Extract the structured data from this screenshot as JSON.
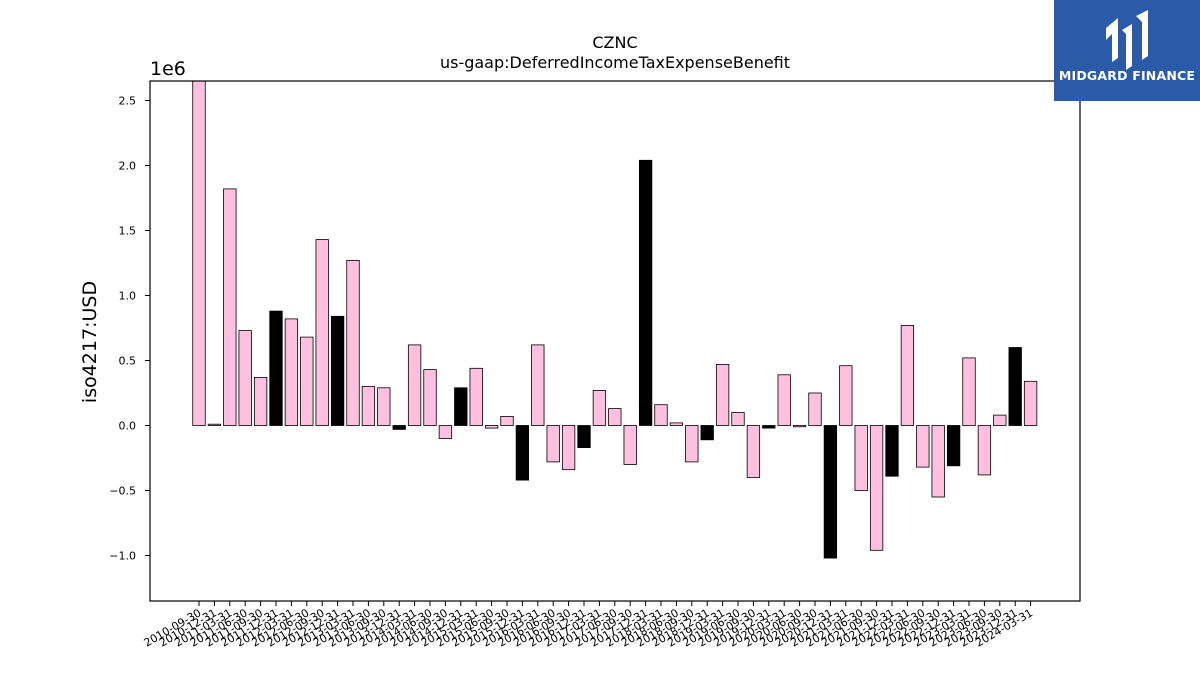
{
  "chart_data": {
    "type": "bar",
    "title": "CZNC",
    "subtitle": "us-gaap:DeferredIncomeTaxExpenseBenefit",
    "ylabel": "iso4217:USD",
    "xlabel": "",
    "offset_label": "1e6",
    "ylim": [
      -1.35,
      2.65
    ],
    "yticks": [
      -1.0,
      -0.5,
      0.0,
      0.5,
      1.0,
      1.5,
      2.0,
      2.5
    ],
    "ytick_labels": [
      "−1.0",
      "−0.5",
      "0.0",
      "0.5",
      "1.0",
      "1.5",
      "2.0",
      "2.5"
    ],
    "grid": false,
    "colors": {
      "quarterly": "#ffc0e0",
      "annual": "#000000",
      "edge": "#000000"
    },
    "categories": [
      "2010-09-30",
      "2010-12-31",
      "2011-03-31",
      "2011-06-30",
      "2011-09-30",
      "2011-12-31",
      "2012-03-31",
      "2012-06-30",
      "2012-09-30",
      "2012-12-31",
      "2013-03-31",
      "2013-06-30",
      "2013-09-30",
      "2013-12-31",
      "2014-03-31",
      "2014-06-30",
      "2014-09-30",
      "2014-12-31",
      "2015-03-31",
      "2015-06-30",
      "2015-09-30",
      "2015-12-31",
      "2016-03-31",
      "2016-06-30",
      "2016-09-30",
      "2016-12-31",
      "2017-03-31",
      "2017-06-30",
      "2017-09-30",
      "2017-12-31",
      "2018-03-31",
      "2018-06-30",
      "2018-09-30",
      "2018-12-31",
      "2019-03-31",
      "2019-06-30",
      "2019-09-30",
      "2019-12-31",
      "2020-03-31",
      "2020-06-30",
      "2020-09-30",
      "2020-12-31",
      "2021-03-31",
      "2021-06-30",
      "2021-09-30",
      "2021-12-31",
      "2022-03-31",
      "2022-06-30",
      "2022-09-30",
      "2022-12-31",
      "2023-03-31",
      "2023-06-30",
      "2023-09-30",
      "2023-12-31",
      "2024-03-31"
    ],
    "values": [
      2.65,
      0.01,
      1.82,
      0.73,
      0.37,
      0.88,
      0.82,
      0.68,
      1.43,
      0.84,
      1.27,
      0.3,
      0.29,
      -0.03,
      0.62,
      0.43,
      -0.1,
      0.29,
      0.44,
      -0.02,
      0.07,
      -0.42,
      0.62,
      -0.28,
      -0.34,
      -0.17,
      0.27,
      0.13,
      -0.3,
      2.04,
      0.16,
      0.02,
      -0.28,
      -0.11,
      0.47,
      0.1,
      -0.4,
      -0.02,
      0.39,
      -0.01,
      0.25,
      -1.02,
      0.46,
      -0.5,
      -0.96,
      -0.39,
      0.77,
      -0.32,
      -0.55,
      -0.31,
      0.52,
      -0.38,
      0.08,
      0.6,
      0.34
    ],
    "bar_kind": [
      "q",
      "q",
      "q",
      "q",
      "q",
      "a",
      "q",
      "q",
      "q",
      "a",
      "q",
      "q",
      "q",
      "a",
      "q",
      "q",
      "q",
      "a",
      "q",
      "q",
      "q",
      "a",
      "q",
      "q",
      "q",
      "a",
      "q",
      "q",
      "q",
      "a",
      "q",
      "q",
      "q",
      "a",
      "q",
      "q",
      "q",
      "a",
      "q",
      "q",
      "q",
      "a",
      "q",
      "q",
      "q",
      "a",
      "q",
      "q",
      "q",
      "a",
      "q",
      "q",
      "q",
      "a",
      "q"
    ]
  },
  "logo": {
    "text": "MIDGARD FINANCE",
    "background": "#2b5aa8"
  }
}
